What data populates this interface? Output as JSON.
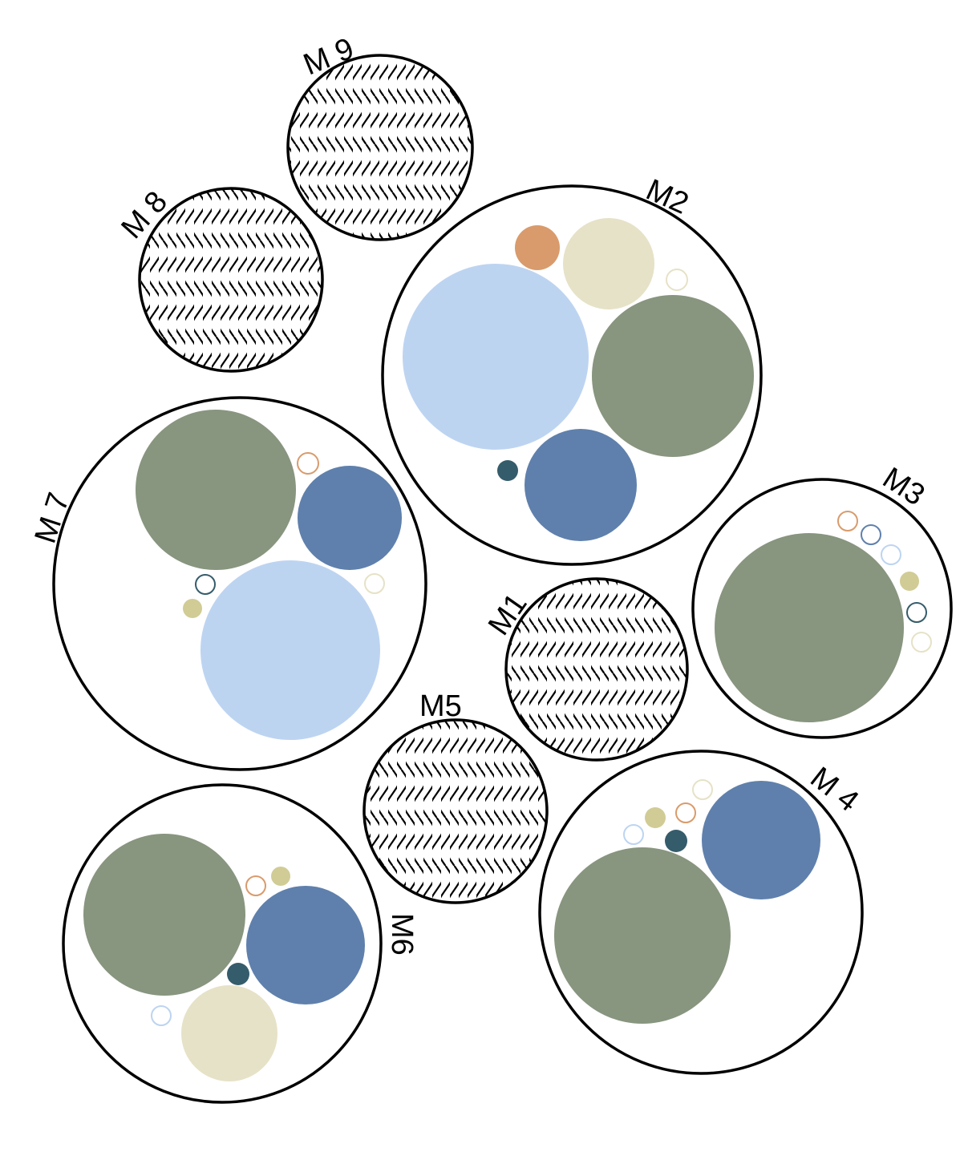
{
  "colors": {
    "sage": "#88957F",
    "steel_blue": "#5F80AC",
    "light_blue": "#BDD4F1",
    "cream": "#E6E2C7",
    "orange": "#D99B6C",
    "olive": "#D1CC95",
    "dark_teal": "#355C6B",
    "outline": "#000000"
  },
  "groups": [
    {
      "id": "M1",
      "label": "M1",
      "pattern": "wave-hatch",
      "children": []
    },
    {
      "id": "M2",
      "label": "M2",
      "pattern": "none",
      "children": [
        {
          "color": "orange",
          "fill": true,
          "size": 0.3
        },
        {
          "color": "cream",
          "fill": true,
          "size": 0.55
        },
        {
          "color": "cream",
          "fill": false,
          "size": 0.12
        },
        {
          "color": "light_blue",
          "fill": true,
          "size": 1.0
        },
        {
          "color": "sage",
          "fill": true,
          "size": 0.88
        },
        {
          "color": "dark_teal",
          "fill": true,
          "size": 0.12
        },
        {
          "color": "steel_blue",
          "fill": true,
          "size": 0.61
        }
      ]
    },
    {
      "id": "M3",
      "label": "M3",
      "pattern": "none",
      "children": [
        {
          "color": "orange",
          "fill": false
        },
        {
          "color": "steel_blue",
          "fill": false
        },
        {
          "color": "light_blue",
          "fill": false
        },
        {
          "color": "olive",
          "fill": true
        },
        {
          "color": "dark_teal",
          "fill": false
        },
        {
          "color": "cream",
          "fill": false
        },
        {
          "color": "sage",
          "fill": true
        }
      ]
    },
    {
      "id": "M4",
      "label": "M 4",
      "pattern": "none",
      "children": [
        {
          "color": "cream",
          "fill": false
        },
        {
          "color": "olive",
          "fill": true
        },
        {
          "color": "orange",
          "fill": false
        },
        {
          "color": "light_blue",
          "fill": false
        },
        {
          "color": "dark_teal",
          "fill": true
        },
        {
          "color": "steel_blue",
          "fill": true
        },
        {
          "color": "sage",
          "fill": true
        }
      ]
    },
    {
      "id": "M5",
      "label": "M5",
      "pattern": "wave-hatch",
      "children": []
    },
    {
      "id": "M6",
      "label": "M6",
      "pattern": "none",
      "children": [
        {
          "color": "sage",
          "fill": true
        },
        {
          "color": "orange",
          "fill": false
        },
        {
          "color": "olive",
          "fill": true
        },
        {
          "color": "steel_blue",
          "fill": true
        },
        {
          "color": "dark_teal",
          "fill": true
        },
        {
          "color": "light_blue",
          "fill": false
        },
        {
          "color": "cream",
          "fill": true
        }
      ]
    },
    {
      "id": "M7",
      "label": "M 7",
      "pattern": "none",
      "children": [
        {
          "color": "sage",
          "fill": true
        },
        {
          "color": "orange",
          "fill": false
        },
        {
          "color": "steel_blue",
          "fill": true
        },
        {
          "color": "dark_teal",
          "fill": false
        },
        {
          "color": "cream",
          "fill": false
        },
        {
          "color": "olive",
          "fill": true
        },
        {
          "color": "light_blue",
          "fill": true
        }
      ]
    },
    {
      "id": "M8",
      "label": "M 8",
      "pattern": "wave-hatch",
      "children": []
    },
    {
      "id": "M9",
      "label": "M 9",
      "pattern": "wave-hatch",
      "children": []
    }
  ]
}
